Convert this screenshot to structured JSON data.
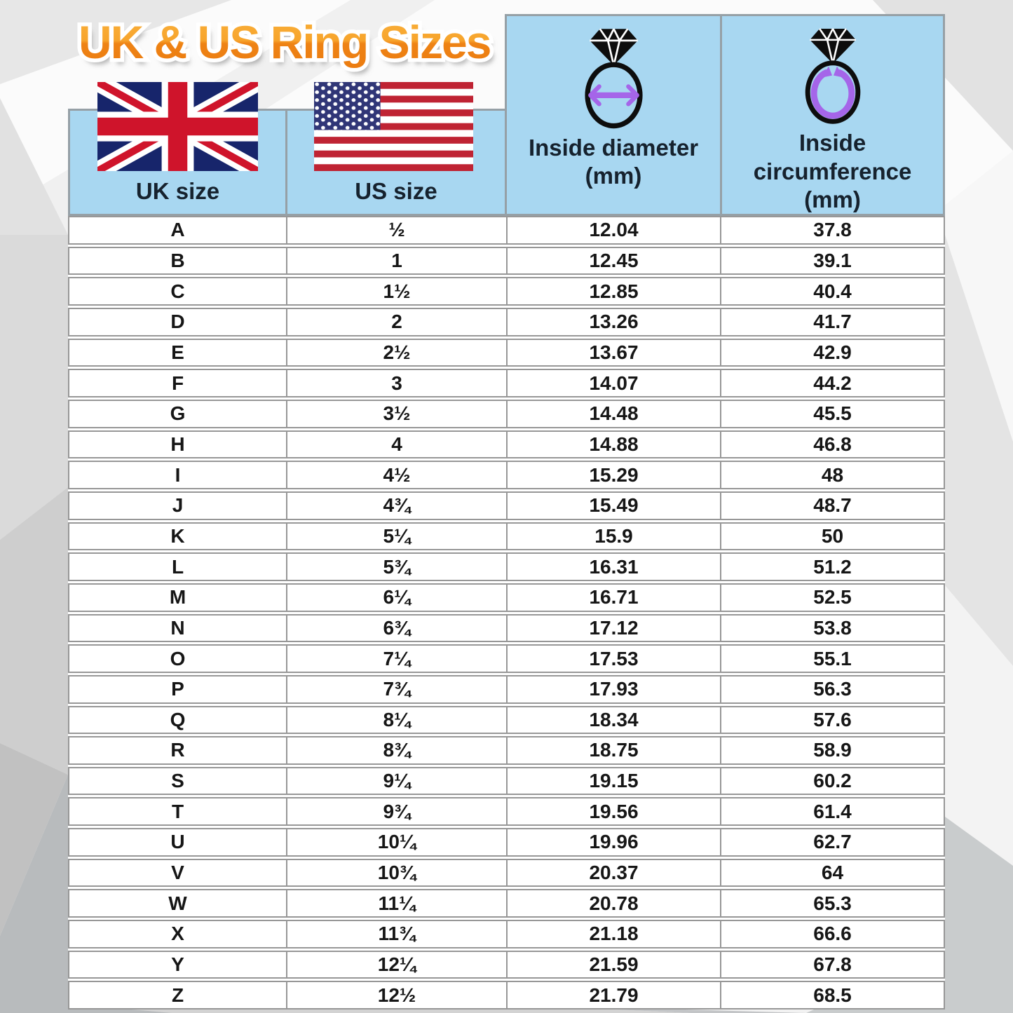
{
  "header": {
    "uk_label": "UK size",
    "us_label": "US size",
    "diameter_label": [
      "Inside diameter",
      "(mm)"
    ],
    "circumference_label": [
      "Inside",
      "circumference",
      "(mm)"
    ]
  },
  "colors": {
    "header_blue": "#a8d7f1",
    "accent_purple": "#a565e9",
    "title_orange_top": "#f9b13c",
    "title_orange_bottom": "#ec7c10",
    "grid_border_gray": "#979797",
    "uk_flag_navy": "#17256b",
    "uk_flag_red": "#cf142b",
    "us_flag_red": "#bf2333",
    "us_flag_blue": "#303677"
  },
  "chart_data": {
    "type": "table",
    "title": "UK & US Ring Sizes",
    "columns": [
      "UK size",
      "US size",
      "Inside diameter (mm)",
      "Inside circumference (mm)"
    ],
    "rows": [
      [
        "A",
        "½",
        "12.04",
        "37.8"
      ],
      [
        "B",
        "1",
        "12.45",
        "39.1"
      ],
      [
        "C",
        "1½",
        "12.85",
        "40.4"
      ],
      [
        "D",
        "2",
        "13.26",
        "41.7"
      ],
      [
        "E",
        "2½",
        "13.67",
        "42.9"
      ],
      [
        "F",
        "3",
        "14.07",
        "44.2"
      ],
      [
        "G",
        "3½",
        "14.48",
        "45.5"
      ],
      [
        "H",
        "4",
        "14.88",
        "46.8"
      ],
      [
        "I",
        "4½",
        "15.29",
        "48"
      ],
      [
        "J",
        "4¾",
        "15.49",
        "48.7"
      ],
      [
        "K",
        "5¼",
        "15.9",
        "50"
      ],
      [
        "L",
        "5¾",
        "16.31",
        "51.2"
      ],
      [
        "M",
        "6¼",
        "16.71",
        "52.5"
      ],
      [
        "N",
        "6¾",
        "17.12",
        "53.8"
      ],
      [
        "O",
        "7¼",
        "17.53",
        "55.1"
      ],
      [
        "P",
        "7¾",
        "17.93",
        "56.3"
      ],
      [
        "Q",
        "8¼",
        "18.34",
        "57.6"
      ],
      [
        "R",
        "8¾",
        "18.75",
        "58.9"
      ],
      [
        "S",
        "9¼",
        "19.15",
        "60.2"
      ],
      [
        "T",
        "9¾",
        "19.56",
        "61.4"
      ],
      [
        "U",
        "10¼",
        "19.96",
        "62.7"
      ],
      [
        "V",
        "10¾",
        "20.37",
        "64"
      ],
      [
        "W",
        "11¼",
        "20.78",
        "65.3"
      ],
      [
        "X",
        "11¾",
        "21.18",
        "66.6"
      ],
      [
        "Y",
        "12¼",
        "21.59",
        "67.8"
      ],
      [
        "Z",
        "12½",
        "21.79",
        "68.5"
      ]
    ]
  }
}
